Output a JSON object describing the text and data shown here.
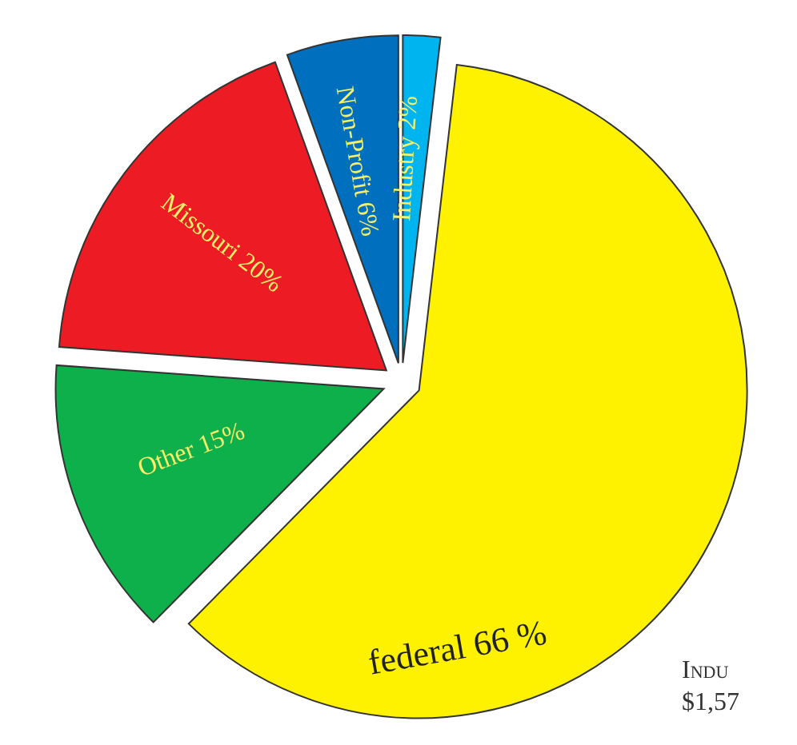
{
  "chart_data": {
    "type": "pie",
    "categories": [
      "Industry",
      "federal",
      "Other",
      "Missouri",
      "Non-Profit"
    ],
    "values": [
      2,
      66,
      15,
      20,
      6
    ],
    "value_labels": [
      "2%",
      "66 %",
      "15%",
      "20%",
      "6%"
    ],
    "colors": [
      "#00b4ef",
      "#fff200",
      "#0db04b",
      "#ed1c24",
      "#006fbd"
    ],
    "annotations": [
      "Indu",
      "$1,57"
    ]
  }
}
